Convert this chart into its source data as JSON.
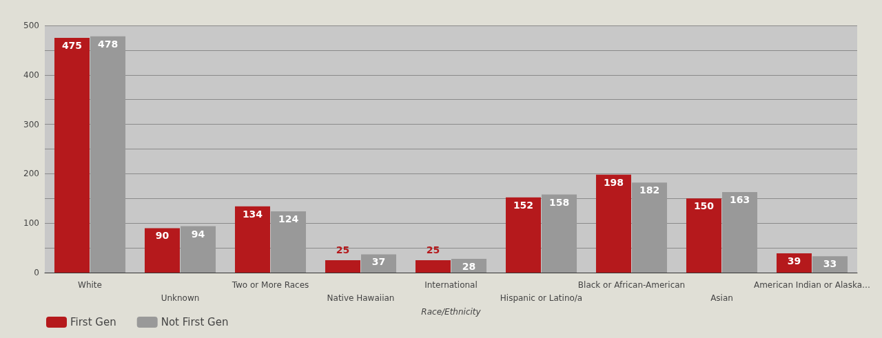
{
  "chart_data": {
    "type": "bar",
    "xlabel": "Race/Ethnicity",
    "categories": [
      "White",
      "Unknown",
      "Two or More Races",
      "Native Hawaiian",
      "International",
      "Hispanic or Latino/a",
      "Black or African-American",
      "Asian",
      "American Indian or Alaska…"
    ],
    "series": [
      {
        "name": "First Gen",
        "color": "#b5191c",
        "values": [
          475,
          90,
          134,
          25,
          25,
          152,
          198,
          150,
          39
        ]
      },
      {
        "name": "Not First Gen",
        "color": "#999999",
        "values": [
          478,
          94,
          124,
          37,
          28,
          158,
          182,
          163,
          33
        ]
      }
    ],
    "ylim": [
      0,
      500
    ],
    "yticks": [
      0,
      {
        "value": 50,
        "label": null
      },
      100,
      {
        "value": 150,
        "label": null
      },
      200,
      {
        "value": 250,
        "label": null
      },
      300,
      {
        "value": 350,
        "label": null
      },
      400,
      {
        "value": 450,
        "label": null
      },
      500
    ],
    "grid": "y",
    "legend": "bottom left",
    "data_labels": true
  }
}
